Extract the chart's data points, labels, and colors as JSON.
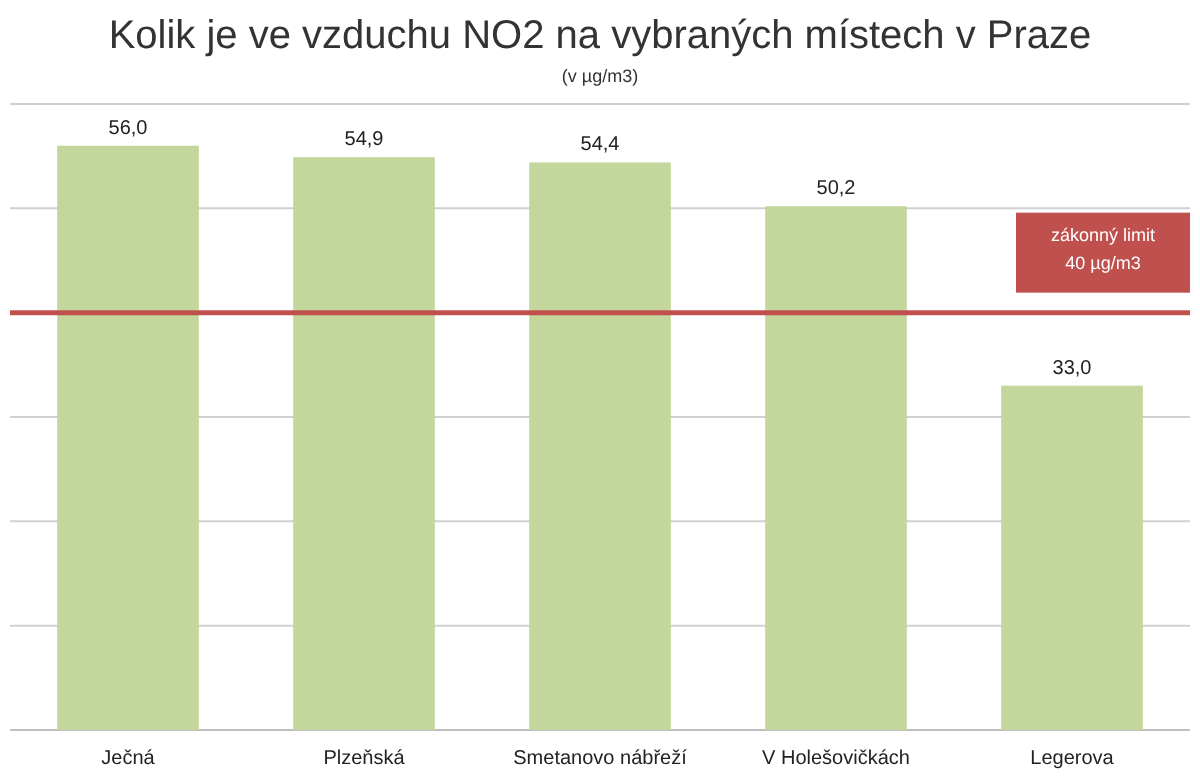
{
  "chart_data": {
    "type": "bar",
    "title": "Kolik je ve vzduchu NO2 na vybraných místech v Praze",
    "subtitle": "(v µg/m3)",
    "categories": [
      "Ječná",
      "Plzeňská",
      "Smetanovo nábřeží",
      "V Holešovičkách",
      "Legerova"
    ],
    "values": [
      56.0,
      54.9,
      54.4,
      50.2,
      33.0
    ],
    "value_labels": [
      "56,0",
      "54,9",
      "54,4",
      "50,2",
      "33,0"
    ],
    "color": "#c3d69b",
    "ylim": [
      0,
      60
    ],
    "yticks": [
      {
        "value": 0,
        "label": null
      },
      {
        "value": 10,
        "label": null
      },
      {
        "value": 20,
        "label": null
      },
      {
        "value": 30,
        "label": null
      },
      {
        "value": 40,
        "label": null
      },
      {
        "value": 50,
        "label": null
      },
      {
        "value": 60,
        "label": null
      }
    ],
    "grid": "y",
    "tick_labels": "x",
    "ref_lines": [
      {
        "axis": "y",
        "value": 40,
        "label": "zákonný limit\n40 µg/m3",
        "color": "#c0504d"
      }
    ]
  }
}
